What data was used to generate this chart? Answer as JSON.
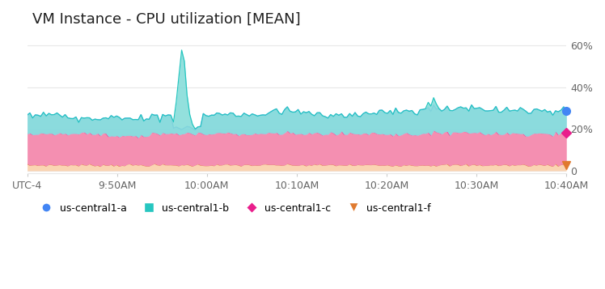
{
  "title": "VM Instance - CPU utilization [MEAN]",
  "title_fontsize": 13,
  "background_color": "#ffffff",
  "ylim": [
    -1,
    65
  ],
  "yticks": [
    0,
    20,
    40,
    60
  ],
  "ytick_labels": [
    "0",
    "20%",
    "40%",
    "60%"
  ],
  "xlabel_ticks": [
    "UTC-4",
    "9:50AM",
    "10:00AM",
    "10:10AM",
    "10:20AM",
    "10:30AM",
    "10:40AM"
  ],
  "num_points": 200,
  "spike_index": 57,
  "color_a_line": "#7baaf7",
  "color_a_fill": "#c5d9fb",
  "color_b_line": "#26c6c0",
  "color_b_fill": "#80dbd8",
  "color_c_line": "#e91e8c",
  "color_c_fill": "#f48fb1",
  "color_d_line": "#e07a2f",
  "color_d_fill": "#fad4b2",
  "legend_marker_a": "#4285f4",
  "legend_marker_b": "#26c6c0",
  "legend_marker_c": "#e91e8c",
  "legend_marker_d": "#e07a2f",
  "grid_color": "#e8e8e8"
}
